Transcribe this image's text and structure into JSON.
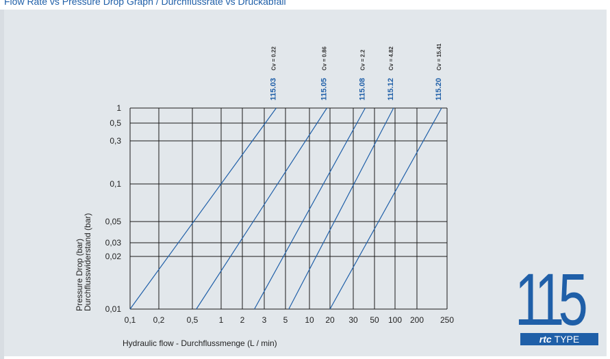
{
  "page_title": "Flow Rate vs Pressure Drop Graph / Durchflussrate vs Druckabfall",
  "colors": {
    "accent": "#1f5fa8",
    "panel": "#e2e7eb",
    "grid": "#1a1a1a",
    "curve": "#1f5fa8"
  },
  "chart_data": {
    "type": "line",
    "xscale": "custom-categorical",
    "yscale": "log",
    "xlabel": "Hydraulic flow - Durchflussmenge (L / min)",
    "ylabel": [
      "Pressure Drop (bar)",
      "Durchflusswiderstand (bar)"
    ],
    "x_ticks": [
      "0,1",
      "0,2",
      "0,5",
      "1",
      "2",
      "3",
      "5",
      "10",
      "20",
      "30",
      "50",
      "100",
      "200",
      "250"
    ],
    "y_ticks": [
      "1",
      "0,5",
      "0,3",
      "0,1",
      "0,05",
      "0,03",
      "0,02",
      "0,01"
    ],
    "xlim": [
      0.1,
      250
    ],
    "ylim": [
      0.01,
      1
    ],
    "grid": true,
    "series": [
      {
        "name": "115.03",
        "cv": "Cv = 0.22",
        "points": [
          [
            0.1,
            0.01
          ],
          [
            4,
            1
          ]
        ]
      },
      {
        "name": "115.05",
        "cv": "Cv = 0.86",
        "points": [
          [
            0.55,
            0.01
          ],
          [
            18,
            1
          ]
        ]
      },
      {
        "name": "115.08",
        "cv": "Cv = 2.2",
        "points": [
          [
            2.5,
            0.01
          ],
          [
            40,
            1
          ]
        ]
      },
      {
        "name": "115.12",
        "cv": "Cv = 4.82",
        "points": [
          [
            5.5,
            0.01
          ],
          [
            95,
            1
          ]
        ]
      },
      {
        "name": "115.20",
        "cv": "Cv = 15.41",
        "points": [
          [
            20,
            0.01
          ],
          [
            240,
            1
          ]
        ]
      }
    ]
  },
  "badge": {
    "number": "115",
    "brand": "rtc",
    "type": "TYPE"
  }
}
